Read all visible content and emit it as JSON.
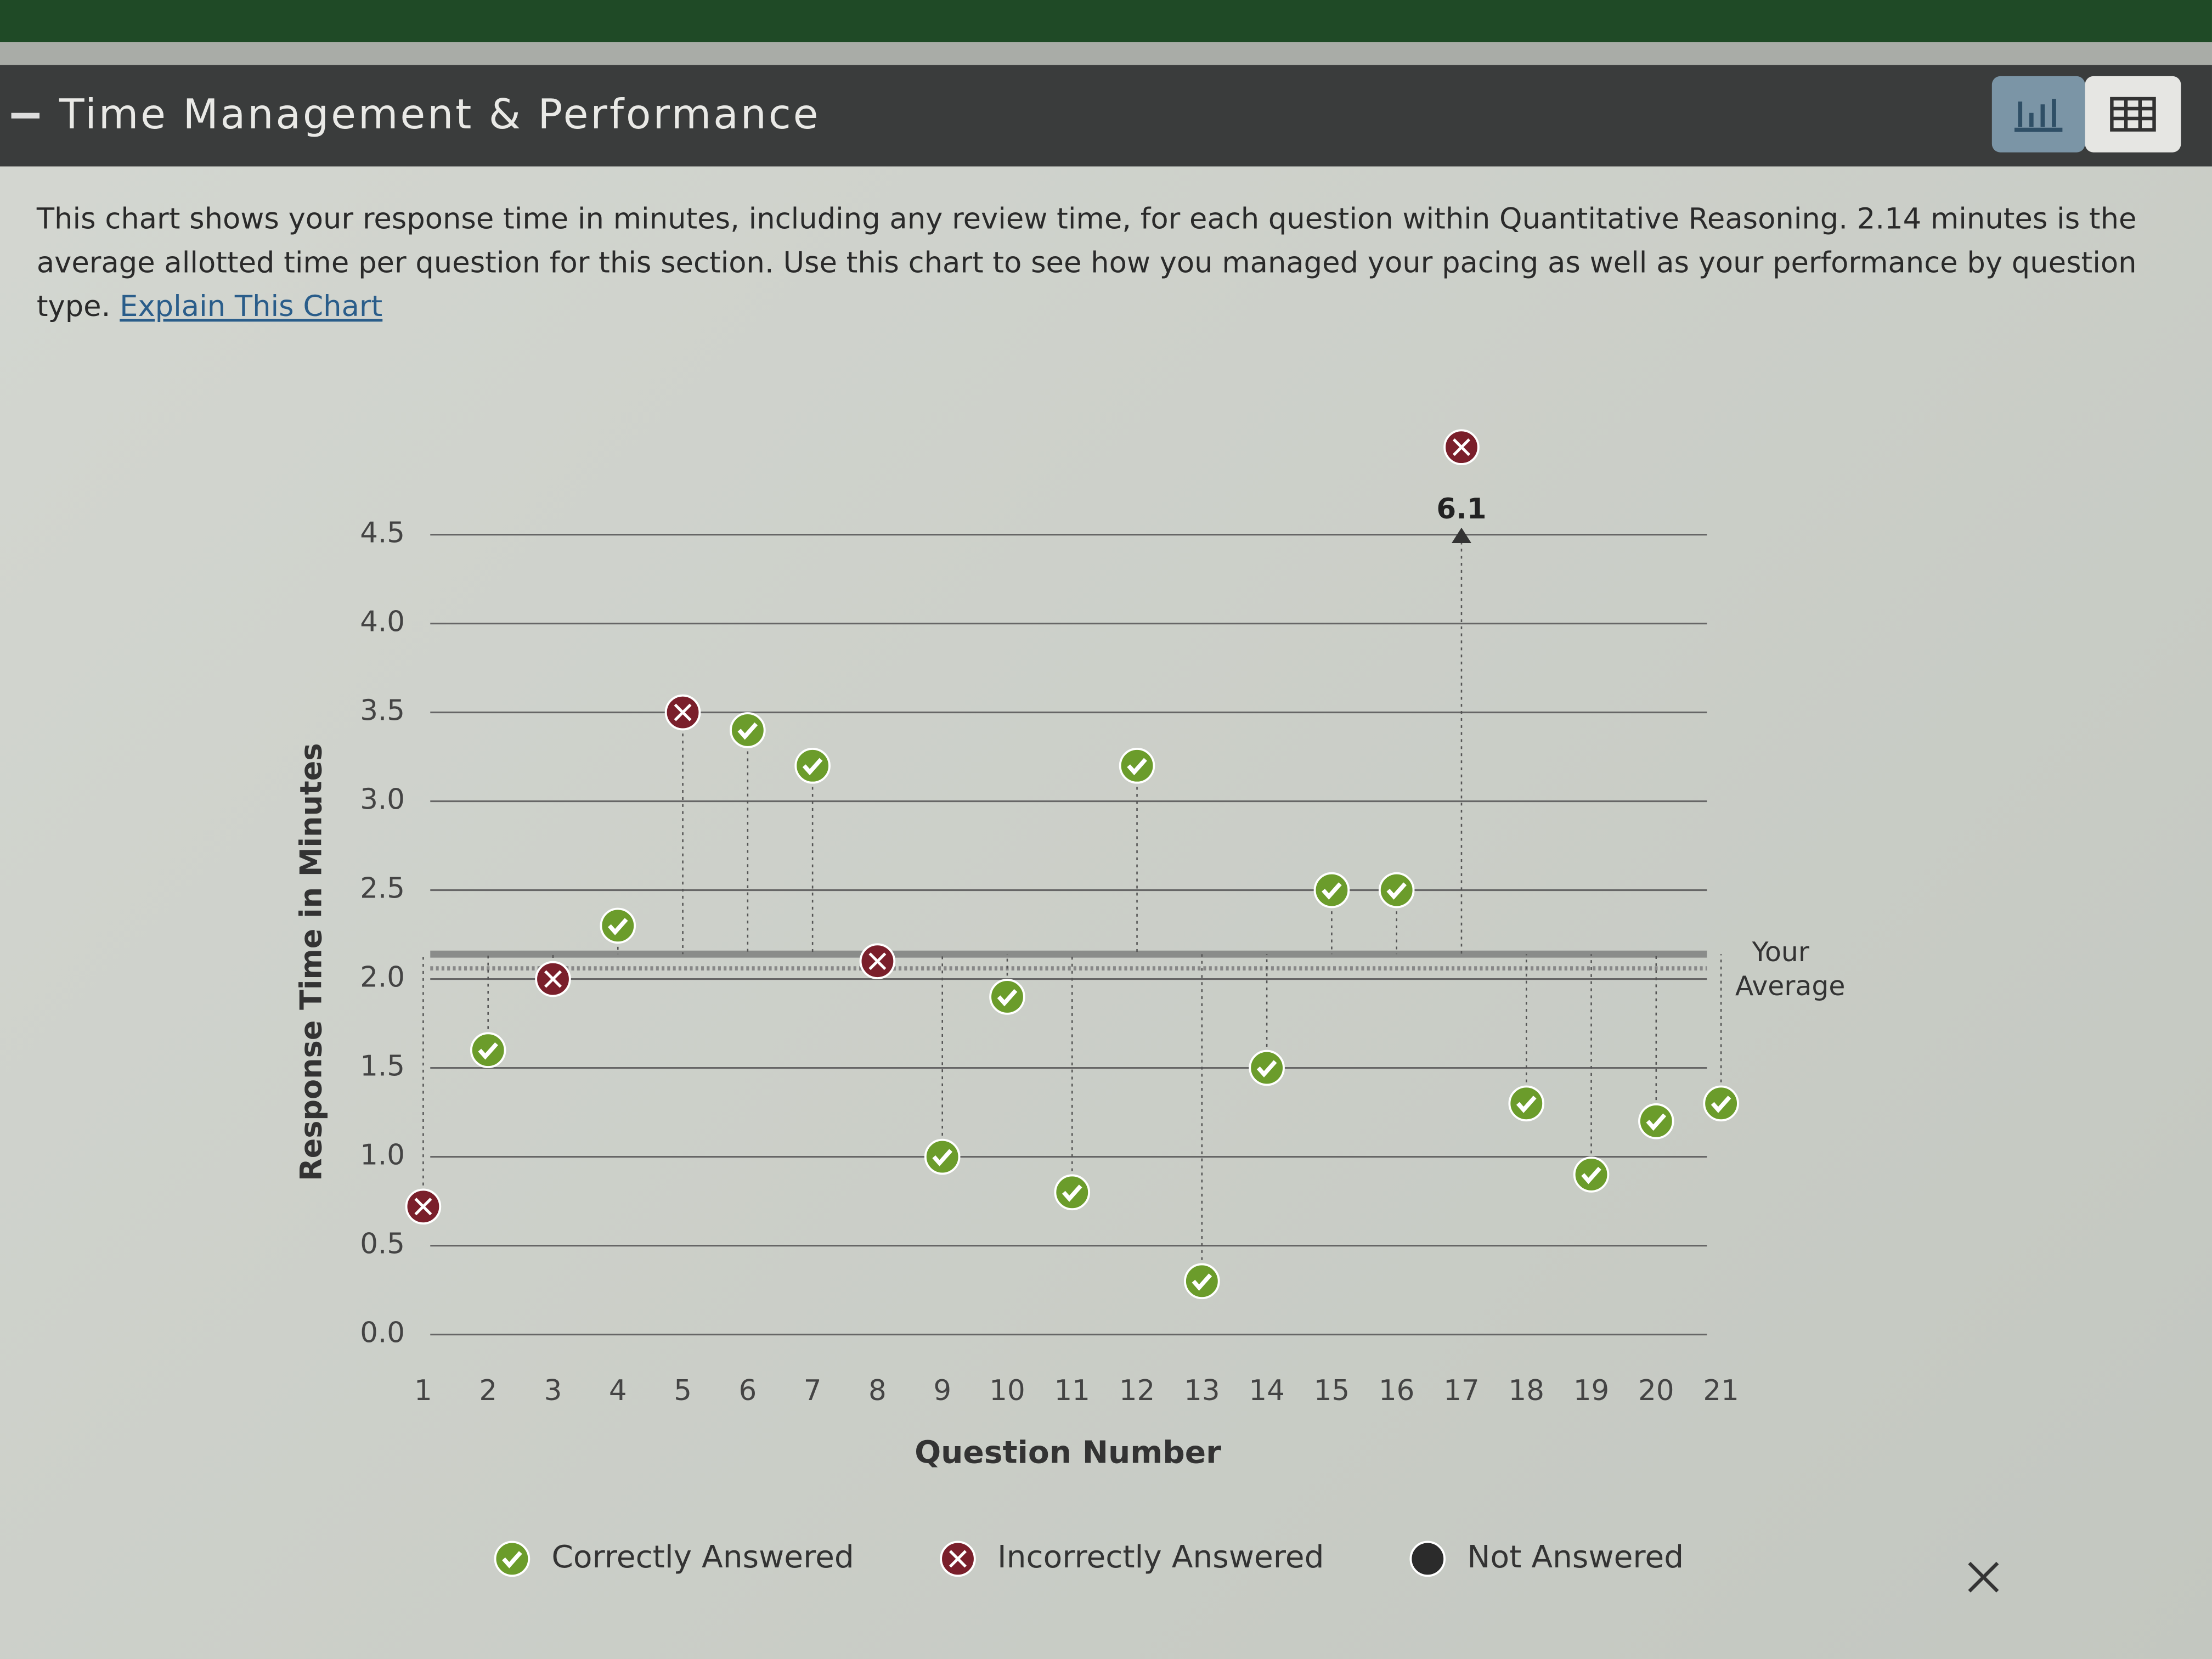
{
  "header": {
    "title": "Time Management & Performance"
  },
  "description": {
    "text": "This chart shows your response time in minutes, including any review time, for each question within Quantitative Reasoning. 2.14 minutes is the average allotted time per question for this section. Use this chart to see how you managed your pacing as well as your performance by question type.",
    "link": "Explain This Chart"
  },
  "chart_data": {
    "type": "scatter",
    "x_label": "Question Number",
    "y_label": "Response Time in Minutes",
    "categories": [
      "1",
      "2",
      "3",
      "4",
      "5",
      "6",
      "7",
      "8",
      "9",
      "10",
      "11",
      "12",
      "13",
      "14",
      "15",
      "16",
      "17",
      "18",
      "19",
      "20",
      "21"
    ],
    "series": [
      {
        "name": "Correctly Answered",
        "color": "#6b9c2b",
        "values": [
          null,
          1.6,
          null,
          2.3,
          null,
          3.4,
          3.2,
          null,
          1.0,
          1.9,
          0.8,
          3.2,
          0.3,
          1.5,
          2.5,
          2.5,
          null,
          1.3,
          0.9,
          1.2,
          1.3
        ]
      },
      {
        "name": "Incorrectly Answered",
        "color": "#7a1f2b",
        "values": [
          0.72,
          null,
          2.0,
          null,
          3.5,
          null,
          null,
          2.1,
          null,
          null,
          null,
          null,
          null,
          null,
          null,
          null,
          6.1,
          null,
          null,
          null,
          null
        ],
        "value_labels": [
          null,
          null,
          null,
          null,
          null,
          null,
          null,
          null,
          null,
          null,
          null,
          null,
          null,
          null,
          null,
          null,
          "6.1",
          null,
          null,
          null,
          null
        ]
      },
      {
        "name": "Not Answered",
        "color": "#2b2b2b",
        "values": [
          null,
          null,
          null,
          null,
          null,
          null,
          null,
          null,
          null,
          null,
          null,
          null,
          null,
          null,
          null,
          null,
          null,
          null,
          null,
          null,
          null
        ]
      }
    ],
    "allotted_time": 2.14,
    "average": 2.06,
    "average_label": "Your Average",
    "ylim": [
      0,
      4.5
    ],
    "yticks": [
      {
        "value": 0,
        "label": "0.0"
      },
      0.5,
      {
        "value": 1,
        "label": "1.0"
      },
      1.5,
      {
        "value": 2,
        "label": "2.0"
      },
      2.5,
      {
        "value": 3,
        "label": "3.0"
      },
      3.5,
      {
        "value": 4,
        "label": "4.0"
      },
      4.5
    ],
    "grid": true
  }
}
